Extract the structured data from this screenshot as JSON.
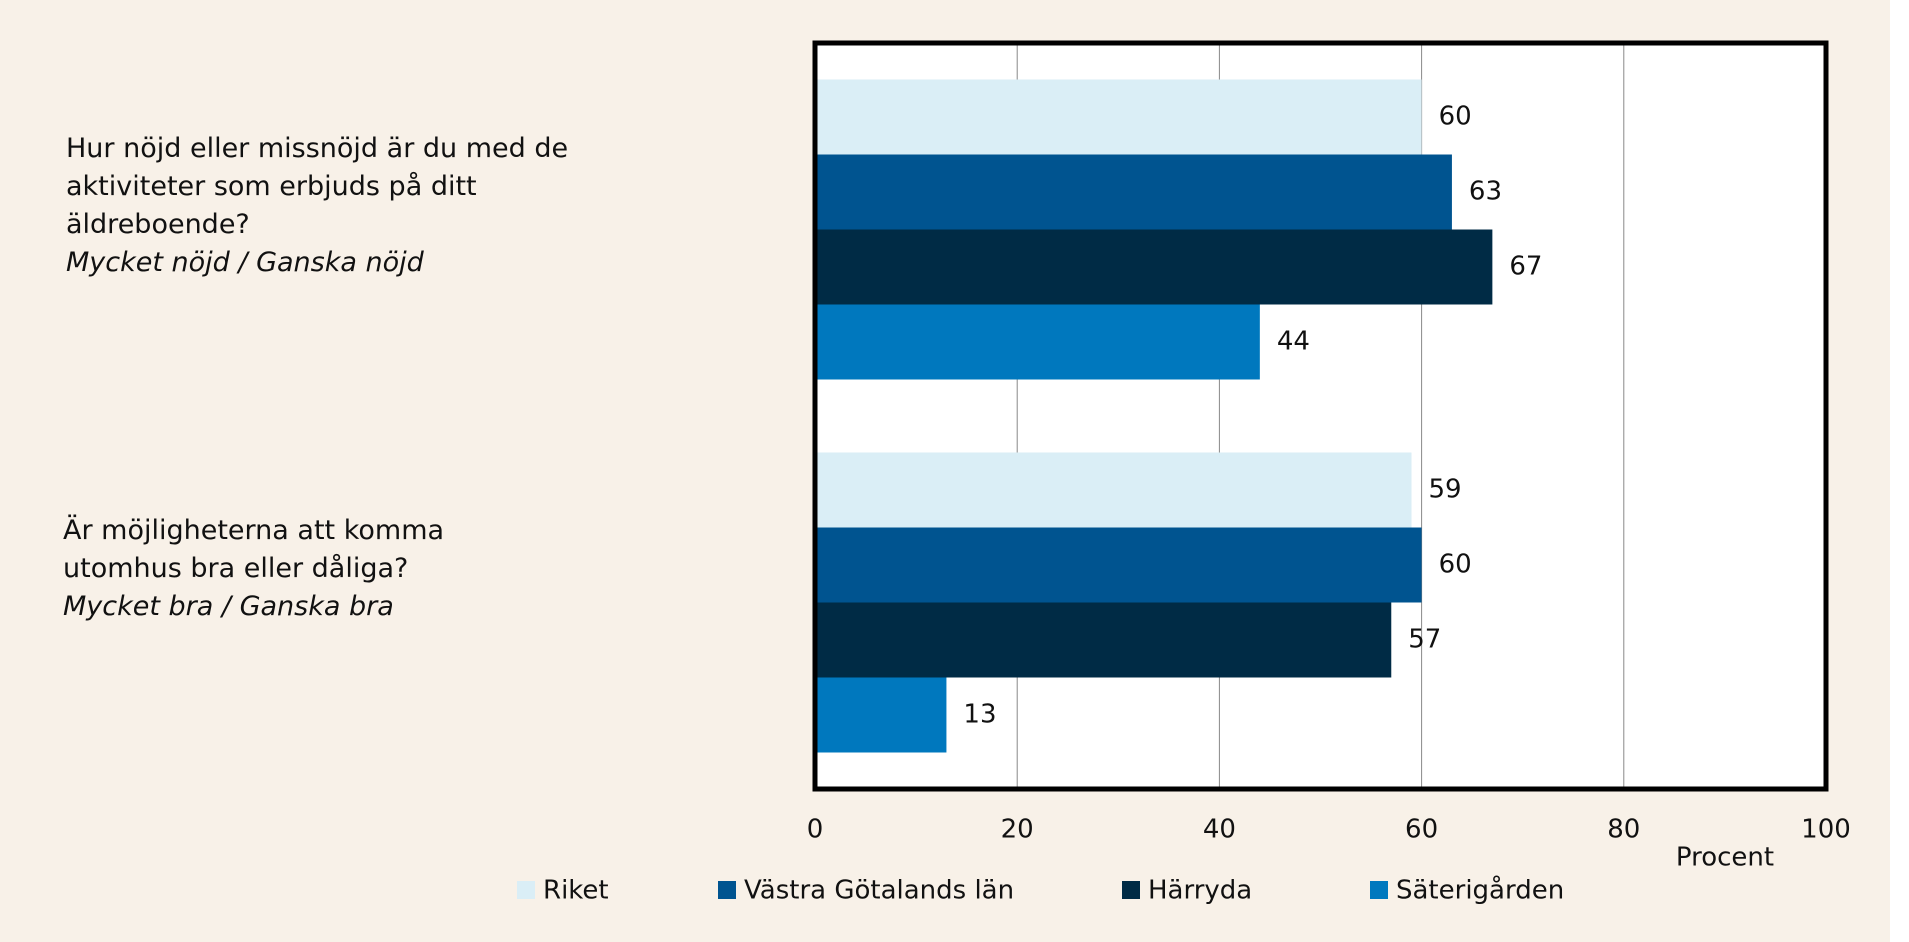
{
  "chart_data": {
    "type": "hbar",
    "categories": [
      "Hur nöjd eller missnöjd är du med de aktiviteter som erbjuds på ditt äldreboende?",
      "Är möjligheterna att komma utomhus bra eller dåliga?"
    ],
    "category_subtitles": [
      "Mycket nöjd / Ganska nöjd",
      "Mycket bra / Ganska bra"
    ],
    "series": [
      {
        "name": "Riket",
        "color": "#daeef6",
        "values": [
          60,
          59
        ]
      },
      {
        "name": "Västra Götalands län",
        "color": "#005490",
        "values": [
          63,
          60
        ]
      },
      {
        "name": "Härryda",
        "color": "#002b45",
        "values": [
          67,
          57
        ]
      },
      {
        "name": "Säterigården",
        "color": "#0078be",
        "values": [
          44,
          13
        ]
      }
    ],
    "xlim": [
      0,
      100
    ],
    "xticks": [
      0,
      20,
      40,
      60,
      80,
      100
    ],
    "x_label": "Procent",
    "grid": true
  }
}
